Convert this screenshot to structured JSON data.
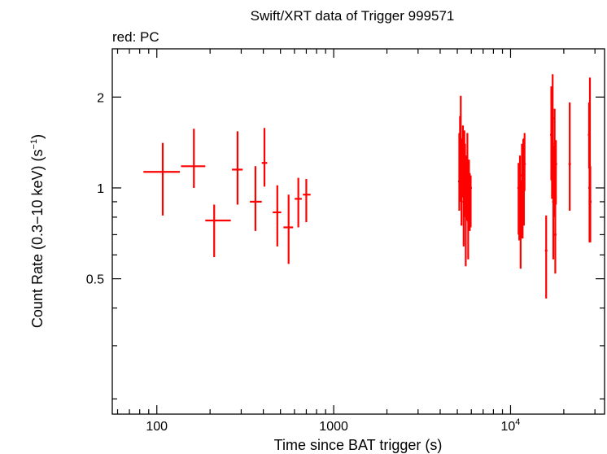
{
  "chart_data": {
    "type": "scatter",
    "title": "Swift/XRT data of Trigger 999571",
    "subtitle": "red: PC",
    "xlabel": "Time since BAT trigger (s)",
    "ylabel_main": "Count Rate (0.3−10 keV) (s",
    "ylabel_sup": "−1",
    "ylabel_close": ")",
    "xscale": "log",
    "yscale": "log",
    "xlim": [
      56,
      34000
    ],
    "ylim": [
      0.178,
      2.89
    ],
    "x_ticks": [
      {
        "value": 100,
        "label": "100"
      },
      {
        "value": 1000,
        "label": "1000"
      },
      {
        "value": 10000,
        "label": "10",
        "sup": "4"
      }
    ],
    "y_ticks": [
      {
        "value": 0.5,
        "label": "0.5"
      },
      {
        "value": 1,
        "label": "1"
      },
      {
        "value": 2,
        "label": "2"
      }
    ],
    "series": [
      {
        "name": "PC",
        "color": "#ff0000",
        "points": [
          {
            "x": 108,
            "xlo": 84,
            "xhi": 135,
            "y": 1.13,
            "ylo": 0.81,
            "yhi": 1.41
          },
          {
            "x": 162,
            "xlo": 137,
            "xhi": 188,
            "y": 1.18,
            "ylo": 1.0,
            "yhi": 1.57
          },
          {
            "x": 211,
            "xlo": 188,
            "xhi": 262,
            "y": 0.78,
            "ylo": 0.59,
            "yhi": 0.88
          },
          {
            "x": 286,
            "xlo": 266,
            "xhi": 306,
            "y": 1.15,
            "ylo": 0.88,
            "yhi": 1.54
          },
          {
            "x": 361,
            "xlo": 336,
            "xhi": 392,
            "y": 0.9,
            "ylo": 0.72,
            "yhi": 1.18
          },
          {
            "x": 406,
            "xlo": 392,
            "xhi": 421,
            "y": 1.21,
            "ylo": 1.01,
            "yhi": 1.58
          },
          {
            "x": 480,
            "xlo": 452,
            "xhi": 505,
            "y": 0.83,
            "ylo": 0.64,
            "yhi": 1.02
          },
          {
            "x": 556,
            "xlo": 520,
            "xhi": 590,
            "y": 0.74,
            "ylo": 0.56,
            "yhi": 0.95
          },
          {
            "x": 631,
            "xlo": 602,
            "xhi": 660,
            "y": 0.92,
            "ylo": 0.74,
            "yhi": 1.08
          },
          {
            "x": 700,
            "xlo": 670,
            "xhi": 740,
            "y": 0.95,
            "ylo": 0.77,
            "yhi": 1.07
          }
        ],
        "dense_points": [
          [
            5130,
            1.05,
            0.84,
            1.52
          ],
          [
            5180,
            1.12,
            0.9,
            1.73
          ],
          [
            5230,
            1.45,
            1.0,
            2.02
          ],
          [
            5280,
            0.95,
            0.75,
            1.45
          ],
          [
            5330,
            1.2,
            0.93,
            1.38
          ],
          [
            5380,
            1.32,
            1.05,
            1.61
          ],
          [
            5430,
            0.9,
            0.64,
            1.12
          ],
          [
            5480,
            1.0,
            0.8,
            1.55
          ],
          [
            5530,
            1.25,
            0.86,
            1.4
          ],
          [
            5580,
            0.86,
            0.55,
            1.28
          ],
          [
            5640,
            1.1,
            0.82,
            1.28
          ],
          [
            5700,
            1.02,
            0.78,
            1.52
          ],
          [
            5760,
            0.78,
            0.58,
            1.12
          ],
          [
            5820,
            1.05,
            0.82,
            1.24
          ],
          [
            5880,
            0.95,
            0.72,
            1.12
          ],
          [
            5950,
            1.0,
            0.74,
            1.1
          ],
          [
            11100,
            1.0,
            0.7,
            1.21
          ],
          [
            11200,
            0.85,
            0.67,
            1.04
          ],
          [
            11300,
            1.1,
            0.88,
            1.28
          ],
          [
            11400,
            0.95,
            0.54,
            1.06
          ],
          [
            11500,
            0.8,
            0.68,
            1.02
          ],
          [
            11600,
            1.05,
            0.8,
            1.4
          ],
          [
            11700,
            0.9,
            0.68,
            1.16
          ],
          [
            11800,
            1.15,
            0.8,
            1.45
          ],
          [
            11900,
            0.98,
            0.75,
            1.46
          ],
          [
            12000,
            1.2,
            0.98,
            1.52
          ],
          [
            15900,
            0.62,
            0.43,
            0.81
          ],
          [
            17000,
            1.5,
            1.06,
            2.17
          ],
          [
            17150,
            1.1,
            0.92,
            1.4
          ],
          [
            17300,
            1.7,
            1.2,
            2.38
          ],
          [
            17450,
            0.9,
            0.58,
            1.24
          ],
          [
            17600,
            1.05,
            0.86,
            1.38
          ],
          [
            17750,
            1.4,
            0.8,
            1.83
          ],
          [
            17900,
            0.7,
            0.52,
            0.98
          ],
          [
            18050,
            1.2,
            0.88,
            1.44
          ],
          [
            21600,
            1.2,
            0.84,
            1.92
          ],
          [
            27800,
            1.5,
            1.16,
            1.92
          ],
          [
            27950,
            1.0,
            0.66,
            1.4
          ],
          [
            28100,
            1.1,
            0.85,
            2.32
          ],
          [
            28250,
            0.9,
            0.66,
            1.18
          ]
        ]
      }
    ]
  }
}
